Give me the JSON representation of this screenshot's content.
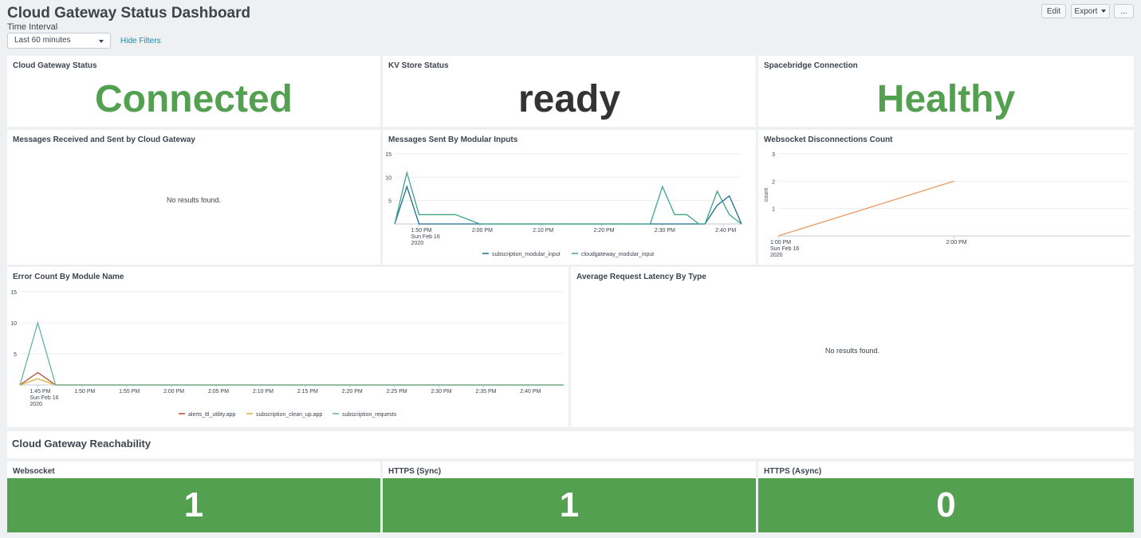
{
  "header": {
    "title": "Cloud Gateway Status Dashboard",
    "time_interval_label": "Time Interval",
    "time_interval_value": "Last 60 minutes",
    "hide_filters": "Hide Filters",
    "edit": "Edit",
    "export": "Export",
    "more": "..."
  },
  "status": {
    "cloud_gateway": {
      "title": "Cloud Gateway Status",
      "value": "Connected"
    },
    "kv_store": {
      "title": "KV Store Status",
      "value": "ready"
    },
    "spacebridge": {
      "title": "Spacebridge Connection",
      "value": "Healthy"
    }
  },
  "panels": {
    "messages_cloud": {
      "title": "Messages Received and Sent by Cloud Gateway",
      "empty": "No results found."
    },
    "messages_modular": {
      "title": "Messages Sent By Modular Inputs"
    },
    "websocket_disc": {
      "title": "Websocket Disconnections Count"
    },
    "error_count": {
      "title": "Error Count By Module Name"
    },
    "latency": {
      "title": "Average Request Latency By Type",
      "empty": "No results found."
    }
  },
  "reachability": {
    "title": "Cloud Gateway Reachability",
    "websocket": {
      "title": "Websocket",
      "value": "1"
    },
    "https_sync": {
      "title": "HTTPS (Sync)",
      "value": "1"
    },
    "https_async": {
      "title": "HTTPS (Async)",
      "value": "0"
    }
  },
  "colors": {
    "green": "#53a051",
    "series_blue": "#1e6b8f",
    "series_teal": "#3ca68a",
    "series_orange": "#ec9960",
    "series_red": "#b5462d",
    "series_yellow": "#d6b03e",
    "series_seafoam": "#62b3a2"
  },
  "chart_data": [
    {
      "id": "messages_modular",
      "type": "line",
      "ylim": [
        0,
        15
      ],
      "yticks": [
        5,
        10,
        15
      ],
      "x_ticks": [
        "1:50 PM\nSun Feb 16\n2020",
        "2:00 PM",
        "2:10 PM",
        "2:20 PM",
        "2:30 PM",
        "2:40 PM"
      ],
      "x_tick_minutes": [
        50,
        60,
        70,
        80,
        90,
        100
      ],
      "x_range_minutes": [
        46,
        103
      ],
      "series": [
        {
          "name": "subscription_modular_input",
          "color": "#1e6b8f",
          "x": [
            46,
            48,
            50,
            52,
            54,
            60,
            70,
            80,
            90,
            97,
            99,
            100,
            101,
            102,
            103
          ],
          "y": [
            0,
            8,
            0,
            0,
            0,
            0,
            0,
            0,
            0,
            0,
            4,
            5,
            6,
            3,
            0
          ]
        },
        {
          "name": "cloudgateway_modular_input",
          "color": "#3ca68a",
          "x": [
            46,
            48,
            50,
            52,
            56,
            60,
            70,
            80,
            88,
            90,
            92,
            94,
            96,
            97,
            99,
            101,
            103
          ],
          "y": [
            0,
            11,
            2,
            2,
            2,
            0,
            0,
            0,
            0,
            8,
            2,
            2,
            0,
            0,
            7,
            2,
            0
          ]
        }
      ]
    },
    {
      "id": "websocket_disc",
      "type": "line",
      "ylim": [
        0,
        3
      ],
      "yticks": [
        1,
        2,
        3
      ],
      "ylabel": "count",
      "x_ticks": [
        "1:00 PM\nSun Feb 16\n2020",
        "2:00 PM"
      ],
      "x_tick_minutes": [
        0,
        60
      ],
      "x_range_minutes": [
        0,
        120
      ],
      "series": [
        {
          "name": "count",
          "color": "#ec9960",
          "x": [
            0,
            60
          ],
          "y": [
            0,
            2
          ]
        }
      ]
    },
    {
      "id": "error_count",
      "type": "line",
      "ylim": [
        0,
        15
      ],
      "yticks": [
        5,
        10,
        15
      ],
      "x_ticks": [
        "1:45 PM\nSun Feb 16\n2020",
        "1:50 PM",
        "1:55 PM",
        "2:00 PM",
        "2:05 PM",
        "2:10 PM",
        "2:15 PM",
        "2:20 PM",
        "2:25 PM",
        "2:30 PM",
        "2:35 PM",
        "2:40 PM"
      ],
      "x_tick_minutes": [
        45,
        50,
        55,
        60,
        65,
        70,
        75,
        80,
        85,
        90,
        95,
        100
      ],
      "x_range_minutes": [
        43,
        104
      ],
      "series": [
        {
          "name": "alerts_ttl_utility.app",
          "color": "#b5462d",
          "x": [
            43,
            45,
            47,
            104
          ],
          "y": [
            0,
            2,
            0,
            0
          ]
        },
        {
          "name": "subscription_clean_up.app",
          "color": "#d6b03e",
          "x": [
            43,
            45,
            47,
            104
          ],
          "y": [
            0,
            1,
            0,
            0
          ]
        },
        {
          "name": "subscription_requests",
          "color": "#62b3a2",
          "x": [
            43,
            45,
            47,
            104
          ],
          "y": [
            0,
            10,
            0,
            0
          ]
        }
      ]
    }
  ]
}
